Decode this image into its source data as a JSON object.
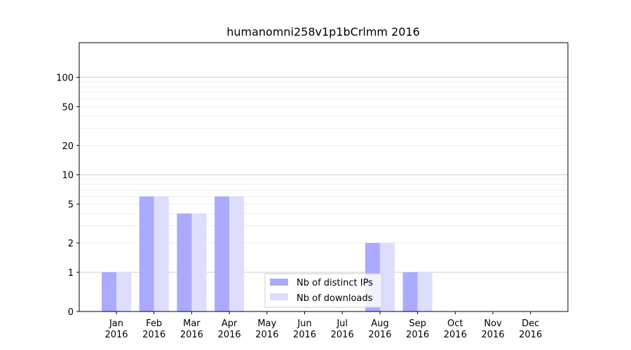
{
  "chart_data": {
    "type": "bar",
    "title": "humanomni258v1p1bCrlmm 2016",
    "xlabel": "",
    "ylabel": "",
    "yscale": "symlog",
    "categories": [
      "Jan\n2016",
      "Feb\n2016",
      "Mar\n2016",
      "Apr\n2016",
      "May\n2016",
      "Jun\n2016",
      "Jul\n2016",
      "Aug\n2016",
      "Sep\n2016",
      "Oct\n2016",
      "Nov\n2016",
      "Dec\n2016"
    ],
    "yticks": [
      "0",
      "1",
      "2",
      "5",
      "10",
      "20",
      "50",
      "100"
    ],
    "series": [
      {
        "name": "Nb of distinct IPs",
        "color": "#aaaaff",
        "values": [
          1,
          6,
          4,
          6,
          0,
          0,
          0,
          2,
          1,
          0,
          0,
          0
        ]
      },
      {
        "name": "Nb of downloads",
        "color": "#ddddff",
        "values": [
          1,
          6,
          4,
          6,
          0,
          0,
          0,
          2,
          1,
          0,
          0,
          0
        ]
      }
    ],
    "legend_position": "lower-center",
    "grid": true
  }
}
